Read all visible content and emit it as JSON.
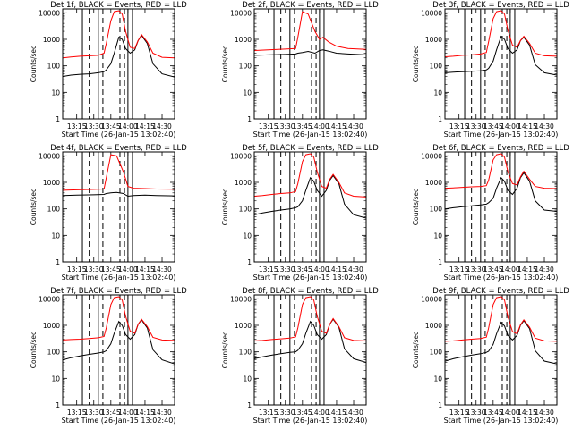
{
  "shared": {
    "ylabel": "Counts/sec",
    "xlabel": "Start Time (26-Jan-15 13:02:40)",
    "x_ticks": [
      "13:15",
      "13:30",
      "13:45",
      "14:00",
      "14:15",
      "14:30"
    ],
    "y_ticks": [
      "1",
      "10",
      "100",
      "1000",
      "10000"
    ],
    "ylim": [
      1,
      14000
    ],
    "xlim": [
      "13:02:40",
      "14:41:00"
    ],
    "y_scale": "log",
    "colors": {
      "events": "#000000",
      "lld": "#ff0000"
    }
  },
  "chart_data": [
    {
      "type": "line",
      "title": "Det 1f, BLACK = Events, RED = LLD",
      "marker_solid": [
        "13:20",
        "13:34",
        "14:00",
        "14:04"
      ],
      "marker_dashed": [
        "13:26",
        "13:38",
        "13:53",
        "13:57"
      ],
      "series": [
        {
          "name": "BLACK = Events",
          "x": [
            "13:03",
            "13:10",
            "13:18",
            "13:26",
            "13:34",
            "13:39",
            "13:41",
            "13:45",
            "13:48",
            "13:52",
            "13:55",
            "13:58",
            "14:02",
            "14:06",
            "14:09",
            "14:12",
            "14:17",
            "14:22",
            "14:30",
            "14:41"
          ],
          "values": [
            40,
            45,
            48,
            50,
            55,
            60,
            70,
            120,
            300,
            1200,
            1000,
            450,
            300,
            400,
            900,
            1400,
            700,
            120,
            50,
            38
          ]
        },
        {
          "name": "RED = LLD",
          "x": [
            "13:03",
            "13:10",
            "13:18",
            "13:26",
            "13:34",
            "13:39",
            "13:41",
            "13:45",
            "13:48",
            "13:52",
            "13:55",
            "13:58",
            "14:02",
            "14:06",
            "14:09",
            "14:12",
            "14:17",
            "14:22",
            "14:30",
            "14:41"
          ],
          "values": [
            200,
            215,
            230,
            240,
            250,
            300,
            700,
            5000,
            11000,
            12000,
            9000,
            2000,
            500,
            450,
            900,
            1500,
            800,
            300,
            210,
            200
          ]
        }
      ]
    },
    {
      "type": "line",
      "title": "Det 2f, BLACK = Events, RED = LLD",
      "marker_solid": [
        "13:20",
        "13:34",
        "14:00",
        "14:04"
      ],
      "marker_dashed": [
        "13:26",
        "13:38",
        "13:53",
        "13:57"
      ],
      "series": [
        {
          "name": "BLACK = Events",
          "x": [
            "13:03",
            "13:15",
            "13:30",
            "13:39",
            "13:41",
            "13:45",
            "13:50",
            "13:56",
            "14:00",
            "14:03",
            "14:08",
            "14:15",
            "14:25",
            "14:41"
          ],
          "values": [
            250,
            260,
            270,
            280,
            300,
            320,
            350,
            300,
            380,
            400,
            360,
            300,
            280,
            260
          ]
        },
        {
          "name": "RED = LLD",
          "x": [
            "13:03",
            "13:15",
            "13:30",
            "13:39",
            "13:41",
            "13:45",
            "13:50",
            "13:56",
            "14:00",
            "14:03",
            "14:08",
            "14:15",
            "14:25",
            "14:41"
          ],
          "values": [
            380,
            400,
            430,
            450,
            1200,
            11000,
            9000,
            2000,
            1000,
            1200,
            800,
            550,
            450,
            420
          ]
        }
      ]
    },
    {
      "type": "line",
      "title": "Det 3f, BLACK = Events, RED = LLD",
      "marker_solid": [
        "13:20",
        "13:34",
        "14:00",
        "14:04"
      ],
      "marker_dashed": [
        "13:26",
        "13:38",
        "13:53",
        "13:57"
      ],
      "series": [
        {
          "name": "BLACK = Events",
          "x": [
            "13:03",
            "13:10",
            "13:18",
            "13:26",
            "13:34",
            "13:39",
            "13:41",
            "13:45",
            "13:48",
            "13:52",
            "13:55",
            "13:58",
            "14:02",
            "14:06",
            "14:09",
            "14:12",
            "14:17",
            "14:22",
            "14:30",
            "14:41"
          ],
          "values": [
            55,
            58,
            60,
            62,
            65,
            70,
            80,
            150,
            400,
            1300,
            1000,
            450,
            300,
            400,
            900,
            1200,
            600,
            110,
            55,
            45
          ]
        },
        {
          "name": "RED = LLD",
          "x": [
            "13:03",
            "13:10",
            "13:18",
            "13:26",
            "13:34",
            "13:39",
            "13:41",
            "13:45",
            "13:48",
            "13:52",
            "13:55",
            "13:58",
            "14:02",
            "14:06",
            "14:09",
            "14:12",
            "14:17",
            "14:22",
            "14:30",
            "14:41"
          ],
          "values": [
            220,
            230,
            250,
            260,
            280,
            320,
            800,
            6000,
            11000,
            12000,
            9000,
            2200,
            600,
            500,
            900,
            1300,
            700,
            300,
            240,
            230
          ]
        }
      ]
    },
    {
      "type": "line",
      "title": "Det 4f, BLACK = Events, RED = LLD",
      "marker_solid": [
        "13:20",
        "13:34",
        "14:00",
        "14:04"
      ],
      "marker_dashed": [
        "13:26",
        "13:38",
        "13:53",
        "13:57"
      ],
      "series": [
        {
          "name": "BLACK = Events",
          "x": [
            "13:03",
            "13:15",
            "13:30",
            "13:39",
            "13:41",
            "13:45",
            "13:50",
            "13:56",
            "14:00",
            "14:05",
            "14:15",
            "14:25",
            "14:41"
          ],
          "values": [
            320,
            330,
            340,
            350,
            380,
            400,
            420,
            380,
            300,
            320,
            330,
            320,
            310
          ]
        },
        {
          "name": "RED = LLD",
          "x": [
            "13:03",
            "13:15",
            "13:30",
            "13:39",
            "13:41",
            "13:45",
            "13:50",
            "13:56",
            "14:00",
            "14:05",
            "14:15",
            "14:25",
            "14:41"
          ],
          "values": [
            500,
            520,
            540,
            560,
            1500,
            11000,
            10000,
            2500,
            700,
            600,
            580,
            560,
            550
          ]
        }
      ]
    },
    {
      "type": "line",
      "title": "Det 5f, BLACK = Events, RED = LLD",
      "marker_solid": [
        "13:20",
        "13:34",
        "14:00",
        "14:04"
      ],
      "marker_dashed": [
        "13:26",
        "13:38",
        "13:53",
        "13:57"
      ],
      "series": [
        {
          "name": "BLACK = Events",
          "x": [
            "13:03",
            "13:10",
            "13:18",
            "13:26",
            "13:34",
            "13:39",
            "13:41",
            "13:45",
            "13:48",
            "13:52",
            "13:55",
            "13:58",
            "14:02",
            "14:06",
            "14:09",
            "14:12",
            "14:17",
            "14:22",
            "14:30",
            "14:41"
          ],
          "values": [
            60,
            70,
            80,
            90,
            100,
            110,
            120,
            200,
            500,
            1500,
            1100,
            500,
            300,
            500,
            1200,
            1800,
            900,
            150,
            60,
            45
          ]
        },
        {
          "name": "RED = LLD",
          "x": [
            "13:03",
            "13:10",
            "13:18",
            "13:26",
            "13:34",
            "13:39",
            "13:41",
            "13:45",
            "13:48",
            "13:52",
            "13:55",
            "13:58",
            "14:02",
            "14:06",
            "14:09",
            "14:12",
            "14:17",
            "14:22",
            "14:30",
            "14:41"
          ],
          "values": [
            300,
            320,
            350,
            380,
            400,
            450,
            900,
            6000,
            11000,
            12000,
            9000,
            2500,
            700,
            600,
            1300,
            2000,
            1000,
            400,
            300,
            280
          ]
        }
      ]
    },
    {
      "type": "line",
      "title": "Det 6f, BLACK = Events, RED = LLD",
      "marker_solid": [
        "13:20",
        "13:34",
        "14:00",
        "14:04"
      ],
      "marker_dashed": [
        "13:26",
        "13:38",
        "13:53",
        "13:57"
      ],
      "series": [
        {
          "name": "BLACK = Events",
          "x": [
            "13:03",
            "13:10",
            "13:18",
            "13:26",
            "13:34",
            "13:39",
            "13:41",
            "13:45",
            "13:48",
            "13:52",
            "13:55",
            "13:58",
            "14:02",
            "14:06",
            "14:09",
            "14:12",
            "14:17",
            "14:22",
            "14:30",
            "14:41"
          ],
          "values": [
            100,
            110,
            120,
            130,
            140,
            150,
            170,
            250,
            600,
            1500,
            1100,
            500,
            350,
            600,
            1500,
            2300,
            1100,
            200,
            90,
            80
          ]
        },
        {
          "name": "RED = LLD",
          "x": [
            "13:03",
            "13:10",
            "13:18",
            "13:26",
            "13:34",
            "13:39",
            "13:41",
            "13:45",
            "13:48",
            "13:52",
            "13:55",
            "13:58",
            "14:02",
            "14:06",
            "14:09",
            "14:12",
            "14:17",
            "14:22",
            "14:30",
            "14:41"
          ],
          "values": [
            600,
            620,
            650,
            680,
            700,
            750,
            1200,
            7000,
            11000,
            12000,
            9000,
            2500,
            900,
            800,
            1600,
            2600,
            1300,
            700,
            600,
            580
          ]
        }
      ]
    },
    {
      "type": "line",
      "title": "Det 7f, BLACK = Events, RED = LLD",
      "marker_solid": [
        "13:20",
        "13:34",
        "14:00",
        "14:04"
      ],
      "marker_dashed": [
        "13:26",
        "13:38",
        "13:53",
        "13:57"
      ],
      "series": [
        {
          "name": "BLACK = Events",
          "x": [
            "13:03",
            "13:10",
            "13:18",
            "13:26",
            "13:34",
            "13:39",
            "13:41",
            "13:45",
            "13:48",
            "13:52",
            "13:55",
            "13:58",
            "14:02",
            "14:06",
            "14:09",
            "14:12",
            "14:17",
            "14:22",
            "14:30",
            "14:41"
          ],
          "values": [
            50,
            60,
            70,
            80,
            90,
            100,
            110,
            200,
            500,
            1400,
            1000,
            450,
            300,
            450,
            1100,
            1600,
            800,
            120,
            50,
            35
          ]
        },
        {
          "name": "RED = LLD",
          "x": [
            "13:03",
            "13:10",
            "13:18",
            "13:26",
            "13:34",
            "13:39",
            "13:41",
            "13:45",
            "13:48",
            "13:52",
            "13:55",
            "13:58",
            "14:02",
            "14:06",
            "14:09",
            "14:12",
            "14:17",
            "14:22",
            "14:30",
            "14:41"
          ],
          "values": [
            280,
            290,
            300,
            320,
            340,
            380,
            800,
            6000,
            11000,
            12000,
            9000,
            2200,
            600,
            500,
            1100,
            1700,
            900,
            350,
            280,
            270
          ]
        }
      ]
    },
    {
      "type": "line",
      "title": "Det 8f, BLACK = Events, RED = LLD",
      "marker_solid": [
        "13:20",
        "13:34",
        "14:00",
        "14:04"
      ],
      "marker_dashed": [
        "13:26",
        "13:38",
        "13:53",
        "13:57"
      ],
      "series": [
        {
          "name": "BLACK = Events",
          "x": [
            "13:03",
            "13:10",
            "13:18",
            "13:26",
            "13:34",
            "13:39",
            "13:41",
            "13:45",
            "13:48",
            "13:52",
            "13:55",
            "13:58",
            "14:02",
            "14:06",
            "14:09",
            "14:12",
            "14:17",
            "14:22",
            "14:30",
            "14:41"
          ],
          "values": [
            55,
            65,
            75,
            85,
            95,
            100,
            115,
            200,
            500,
            1400,
            1000,
            450,
            300,
            450,
            1100,
            1700,
            850,
            130,
            55,
            40
          ]
        },
        {
          "name": "RED = LLD",
          "x": [
            "13:03",
            "13:10",
            "13:18",
            "13:26",
            "13:34",
            "13:39",
            "13:41",
            "13:45",
            "13:48",
            "13:52",
            "13:55",
            "13:58",
            "14:02",
            "14:06",
            "14:09",
            "14:12",
            "14:17",
            "14:22",
            "14:30",
            "14:41"
          ],
          "values": [
            260,
            270,
            290,
            310,
            330,
            370,
            800,
            6000,
            11000,
            12000,
            9000,
            2200,
            600,
            500,
            1100,
            1800,
            900,
            340,
            270,
            260
          ]
        }
      ]
    },
    {
      "type": "line",
      "title": "Det 9f, BLACK = Events, RED = LLD",
      "marker_solid": [
        "13:20",
        "13:34",
        "14:00",
        "14:04"
      ],
      "marker_dashed": [
        "13:26",
        "13:38",
        "13:53",
        "13:57"
      ],
      "series": [
        {
          "name": "BLACK = Events",
          "x": [
            "13:03",
            "13:10",
            "13:18",
            "13:26",
            "13:34",
            "13:39",
            "13:41",
            "13:45",
            "13:48",
            "13:52",
            "13:55",
            "13:58",
            "14:02",
            "14:06",
            "14:09",
            "14:12",
            "14:17",
            "14:22",
            "14:30",
            "14:41"
          ],
          "values": [
            45,
            55,
            65,
            75,
            85,
            95,
            105,
            190,
            480,
            1300,
            950,
            420,
            280,
            420,
            1000,
            1500,
            750,
            110,
            45,
            35
          ]
        },
        {
          "name": "RED = LLD",
          "x": [
            "13:03",
            "13:10",
            "13:18",
            "13:26",
            "13:34",
            "13:39",
            "13:41",
            "13:45",
            "13:48",
            "13:52",
            "13:55",
            "13:58",
            "14:02",
            "14:06",
            "14:09",
            "14:12",
            "14:17",
            "14:22",
            "14:30",
            "14:41"
          ],
          "values": [
            250,
            260,
            280,
            300,
            320,
            360,
            780,
            6000,
            11000,
            12000,
            9000,
            2100,
            580,
            480,
            1050,
            1600,
            850,
            330,
            260,
            250
          ]
        }
      ]
    }
  ]
}
